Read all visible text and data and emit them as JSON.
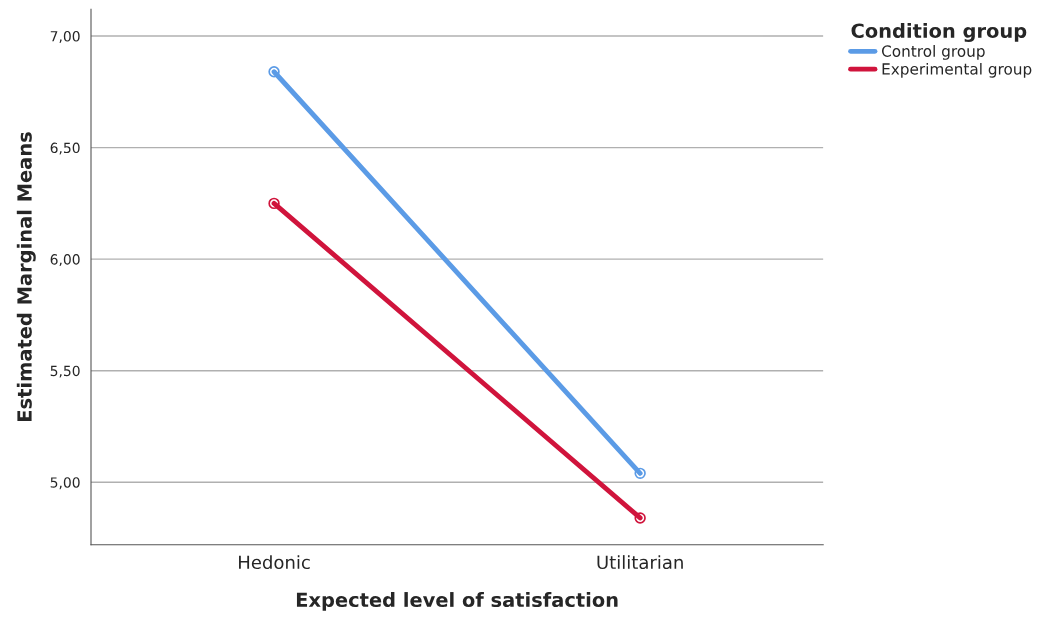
{
  "chart_data": {
    "type": "line",
    "xlabel": "Expected level of satisfaction",
    "ylabel": "Estimated Marginal Means",
    "legend_title": "Condition group",
    "categories": [
      "Hedonic",
      "Utilitarian"
    ],
    "series": [
      {
        "name": "Control group",
        "color": "#5b9be6",
        "values": [
          6.84,
          5.04
        ]
      },
      {
        "name": "Experimental group",
        "color": "#d0143c",
        "values": [
          6.25,
          4.84
        ]
      }
    ],
    "ylim": [
      4.72,
      7.12
    ],
    "yticks": [
      {
        "value": 5,
        "label": "5,00"
      },
      {
        "value": 5.5,
        "label": "5,50"
      },
      {
        "value": 6,
        "label": "6,00"
      },
      {
        "value": 6.5,
        "label": "6,50"
      },
      {
        "value": 7,
        "label": "7,00"
      }
    ],
    "grid": "y",
    "legend": "top right",
    "marker": "circle",
    "line_style": "solid"
  }
}
